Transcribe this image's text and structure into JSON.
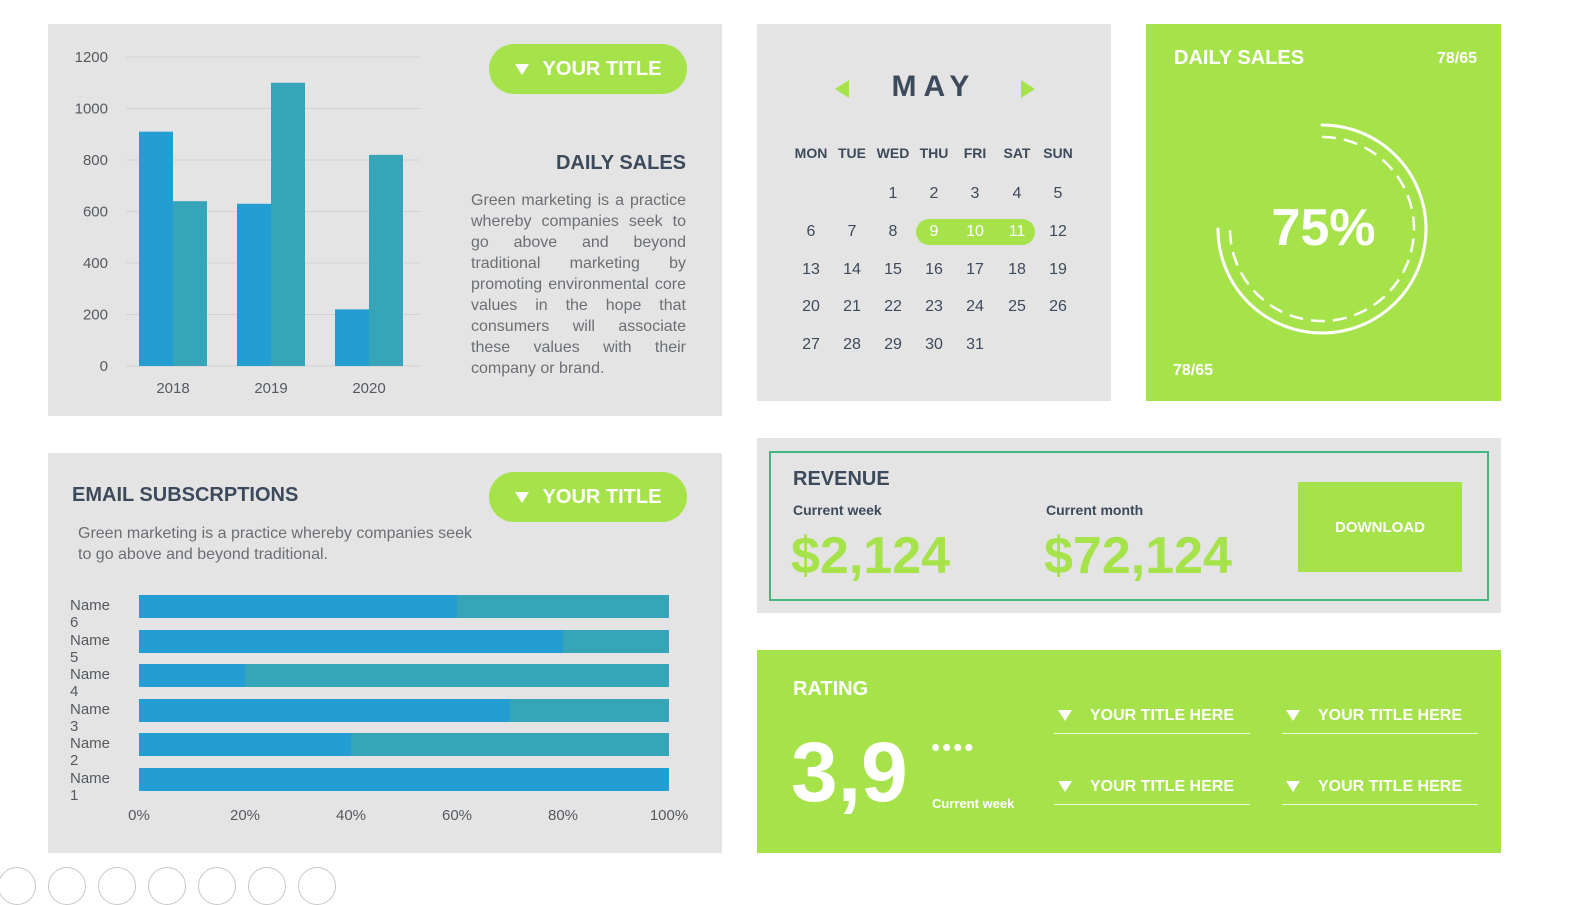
{
  "colors": {
    "accent": "#a6e34b",
    "bar_blue": "#249dd2",
    "bar_teal": "#36a5b8",
    "panel": "#e4e4e4",
    "text_dark": "#3d4a5c"
  },
  "daily_sales_chart": {
    "pill_label": "YOUR TITLE",
    "heading": "DAILY SALES",
    "description": "Green marketing is a practice whereby companies seek to go above and beyond traditional marketing by promoting environmental core values in the hope that consumers will associate these values with their company or brand."
  },
  "calendar": {
    "month": "MAY",
    "prev_icon": "triangle-left-icon",
    "next_icon": "triangle-right-icon",
    "weekdays": [
      "MON",
      "TUE",
      "WED",
      "THU",
      "FRI",
      "SAT",
      "SUN"
    ],
    "first_weekday_index": 2,
    "days_in_month": 31,
    "highlighted_days": [
      9,
      10,
      11
    ]
  },
  "daily_sales_gauge": {
    "title": "DAILY SALES",
    "top_ratio": "78/65",
    "percent_label": "75%",
    "percent": 75,
    "bottom_ratio": "78/65"
  },
  "email": {
    "title": "EMAIL SUBSCRPTIONS",
    "pill_label": "YOUR TITLE",
    "description": "Green marketing is a practice whereby companies seek to go above and beyond traditional."
  },
  "revenue": {
    "title": "REVENUE",
    "week_label": "Current week",
    "week_value": "$2,124",
    "month_label": "Current month",
    "month_value": "$72,124",
    "download_label": "DOWNLOAD"
  },
  "rating": {
    "title": "RATING",
    "value": "3,9",
    "dots": "••••",
    "sub_label": "Current week",
    "items": [
      "YOUR TITLE HERE",
      "YOUR TITLE HERE",
      "YOUR TITLE HERE",
      "YOUR TITLE HERE"
    ]
  },
  "chart_data": [
    {
      "type": "bar",
      "categories": [
        "2018",
        "2019",
        "2020"
      ],
      "series": [
        {
          "values": [
            910,
            630,
            220
          ]
        },
        {
          "values": [
            640,
            1100,
            820
          ]
        }
      ],
      "yticks": [
        "0",
        "200",
        "400",
        "600",
        "800",
        "1000",
        "1200"
      ],
      "ylim": [
        0,
        1200
      ],
      "grid": true
    },
    {
      "type": "bar",
      "orientation": "horizontal",
      "stacked": true,
      "categories": [
        "Name 6",
        "Name 5",
        "Name 4",
        "Name 3",
        "Name 2",
        "Name 1"
      ],
      "series": [
        {
          "values": [
            60,
            80,
            20,
            70,
            40,
            100
          ]
        },
        {
          "values": [
            40,
            20,
            80,
            30,
            60,
            0
          ]
        }
      ],
      "xticks": [
        "0%",
        "20%",
        "40%",
        "60%",
        "80%",
        "100%"
      ],
      "xlim": [
        0,
        100
      ]
    }
  ]
}
